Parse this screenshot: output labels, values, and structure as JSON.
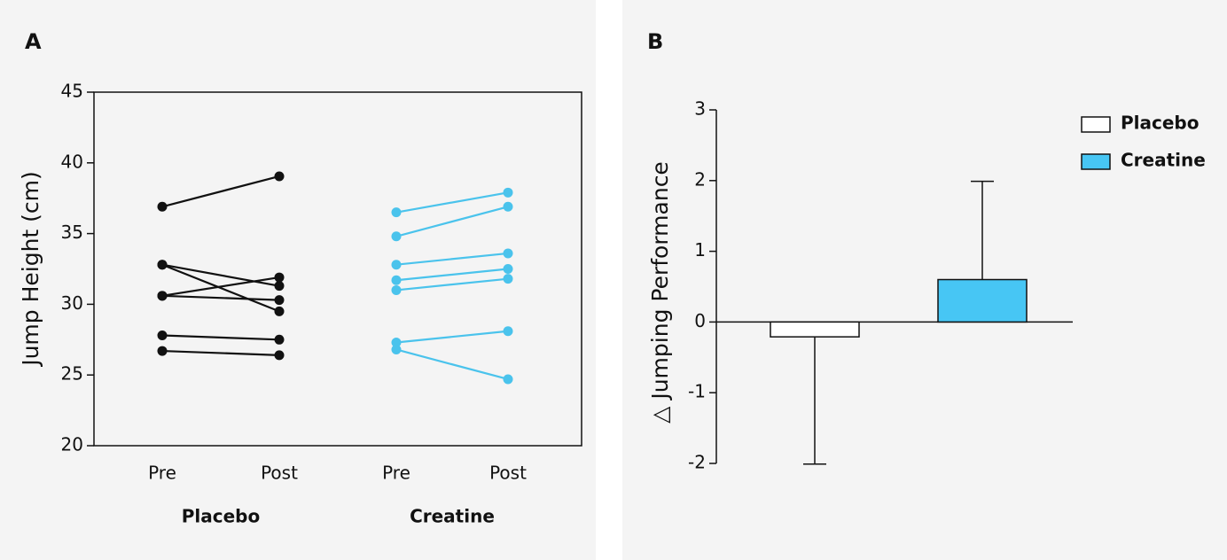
{
  "chart_data": [
    {
      "type": "paired-line",
      "panel": "A",
      "ylabel": "Jump Height (cm)",
      "ylim": [
        20,
        45
      ],
      "yticks": [
        20,
        25,
        30,
        35,
        40,
        45
      ],
      "categories": [
        "Pre",
        "Post",
        "Pre",
        "Post"
      ],
      "groups": [
        "Placebo",
        "Creatine"
      ],
      "series": [
        {
          "color": "#111111",
          "values": [
            36.9,
            39.05,
            null,
            null
          ]
        },
        {
          "color": "#111111",
          "values": [
            32.8,
            31.3,
            null,
            null
          ]
        },
        {
          "color": "#111111",
          "values": [
            32.8,
            29.5,
            null,
            null
          ]
        },
        {
          "color": "#111111",
          "values": [
            30.6,
            31.9,
            null,
            null
          ]
        },
        {
          "color": "#111111",
          "values": [
            30.6,
            30.3,
            null,
            null
          ]
        },
        {
          "color": "#111111",
          "values": [
            27.8,
            27.5,
            null,
            null
          ]
        },
        {
          "color": "#111111",
          "values": [
            26.7,
            26.4,
            null,
            null
          ]
        },
        {
          "color": "#4ac3ec",
          "values": [
            null,
            null,
            36.5,
            37.9
          ]
        },
        {
          "color": "#4ac3ec",
          "values": [
            null,
            null,
            34.8,
            36.9
          ]
        },
        {
          "color": "#4ac3ec",
          "values": [
            null,
            null,
            32.8,
            33.6
          ]
        },
        {
          "color": "#4ac3ec",
          "values": [
            null,
            null,
            31.7,
            32.5
          ]
        },
        {
          "color": "#4ac3ec",
          "values": [
            null,
            null,
            31.0,
            31.8
          ]
        },
        {
          "color": "#4ac3ec",
          "values": [
            null,
            null,
            27.3,
            28.1
          ]
        },
        {
          "color": "#4ac3ec",
          "values": [
            null,
            null,
            26.8,
            24.7
          ]
        }
      ]
    },
    {
      "type": "bar",
      "panel": "B",
      "ylabel": "△ Jumping Performance",
      "ylim": [
        -2,
        3
      ],
      "yticks": [
        -2,
        -1,
        0,
        1,
        2,
        3
      ],
      "series": [
        {
          "name": "Placebo",
          "color": "#ffffff",
          "values": [
            -0.21
          ],
          "errors": [
            1.8
          ]
        },
        {
          "name": "Creatine",
          "color": "#47c6f4",
          "values": [
            0.6
          ],
          "errors": [
            1.39
          ]
        }
      ]
    }
  ]
}
